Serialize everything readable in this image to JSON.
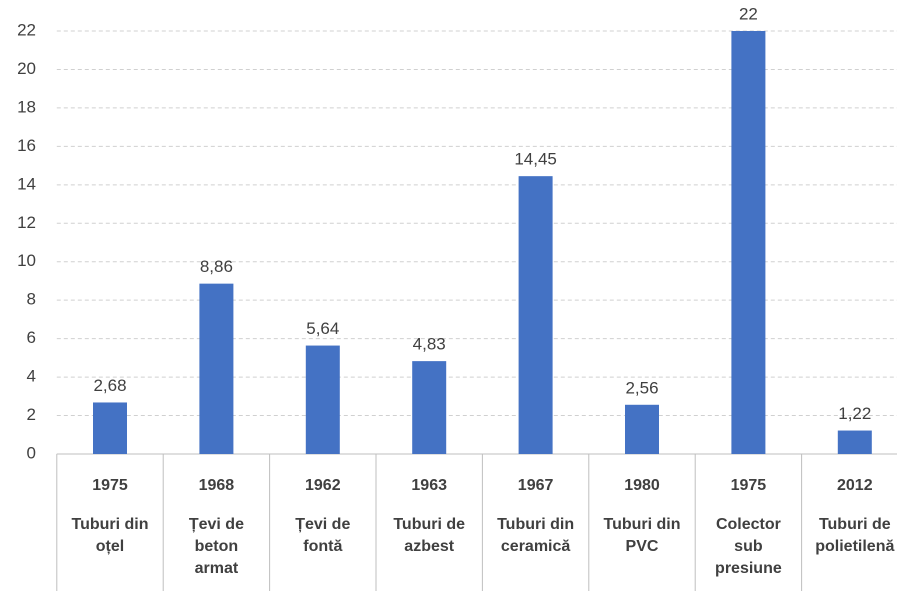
{
  "chart_data": {
    "type": "bar",
    "years": [
      "1975",
      "1968",
      "1962",
      "1963",
      "1967",
      "1980",
      "1975",
      "2012"
    ],
    "categories": [
      [
        "Tuburi din",
        "oțel"
      ],
      [
        "Țevi de",
        "beton",
        "armat"
      ],
      [
        "Țevi de",
        "fontă"
      ],
      [
        "Tuburi de",
        "azbest"
      ],
      [
        "Tuburi din",
        "ceramică"
      ],
      [
        "Tuburi din",
        "PVC"
      ],
      [
        "Colector",
        "sub",
        "presiune"
      ],
      [
        "Tuburi de",
        "polietilenă"
      ]
    ],
    "values": [
      2.68,
      8.86,
      5.64,
      4.83,
      14.45,
      2.56,
      22,
      1.22
    ],
    "value_labels": [
      "2,68",
      "8,86",
      "5,64",
      "4,83",
      "14,45",
      "2,56",
      "22",
      "1,22"
    ],
    "color": "#4472c4",
    "ylim": [
      0,
      22
    ],
    "yticks": [
      0,
      2,
      4,
      6,
      8,
      10,
      12,
      14,
      16,
      18,
      20,
      22
    ],
    "grid": true
  }
}
